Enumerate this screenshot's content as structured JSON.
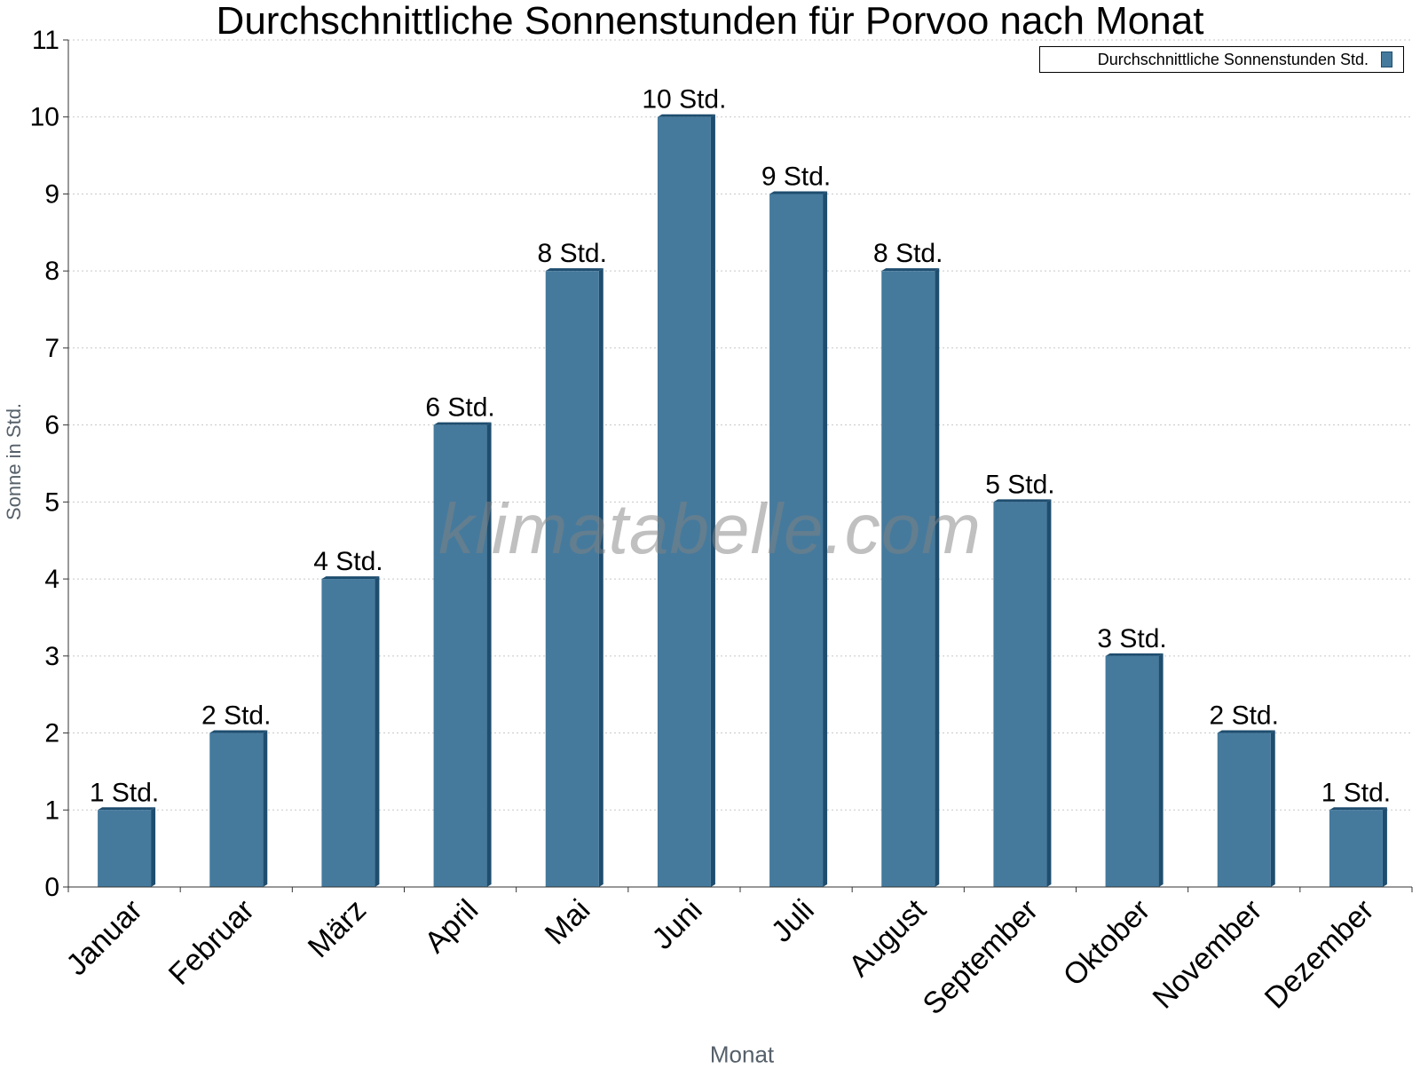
{
  "chart_data": {
    "type": "bar",
    "title": "Durchschnittliche Sonnenstunden für Porvoo nach Monat",
    "xlabel": "Monat",
    "ylabel": "Sonne in Std.",
    "categories": [
      "Januar",
      "Februar",
      "März",
      "April",
      "Mai",
      "Juni",
      "Juli",
      "August",
      "September",
      "Oktober",
      "November",
      "Dezember"
    ],
    "series": [
      {
        "name": "Durchschnittliche Sonnenstunden Std.",
        "values": [
          1,
          2,
          4,
          6,
          8,
          10,
          9,
          8,
          5,
          3,
          2,
          1
        ],
        "data_labels": [
          "1 Std.",
          "2 Std.",
          "4 Std.",
          "6 Std.",
          "8 Std.",
          "10 Std.",
          "9 Std.",
          "8 Std.",
          "5 Std.",
          "3 Std.",
          "2 Std.",
          "1 Std."
        ]
      }
    ],
    "ylim": [
      0,
      11
    ],
    "yticks": [
      "0",
      "1",
      "2",
      "3",
      "4",
      "5",
      "6",
      "7",
      "8",
      "9",
      "10",
      "11"
    ],
    "grid": true,
    "legend_position": "top-right",
    "bar_color": "#457a9d",
    "bar_edge_color": "#1e4d6e"
  },
  "watermark": "klimatabelle.com"
}
